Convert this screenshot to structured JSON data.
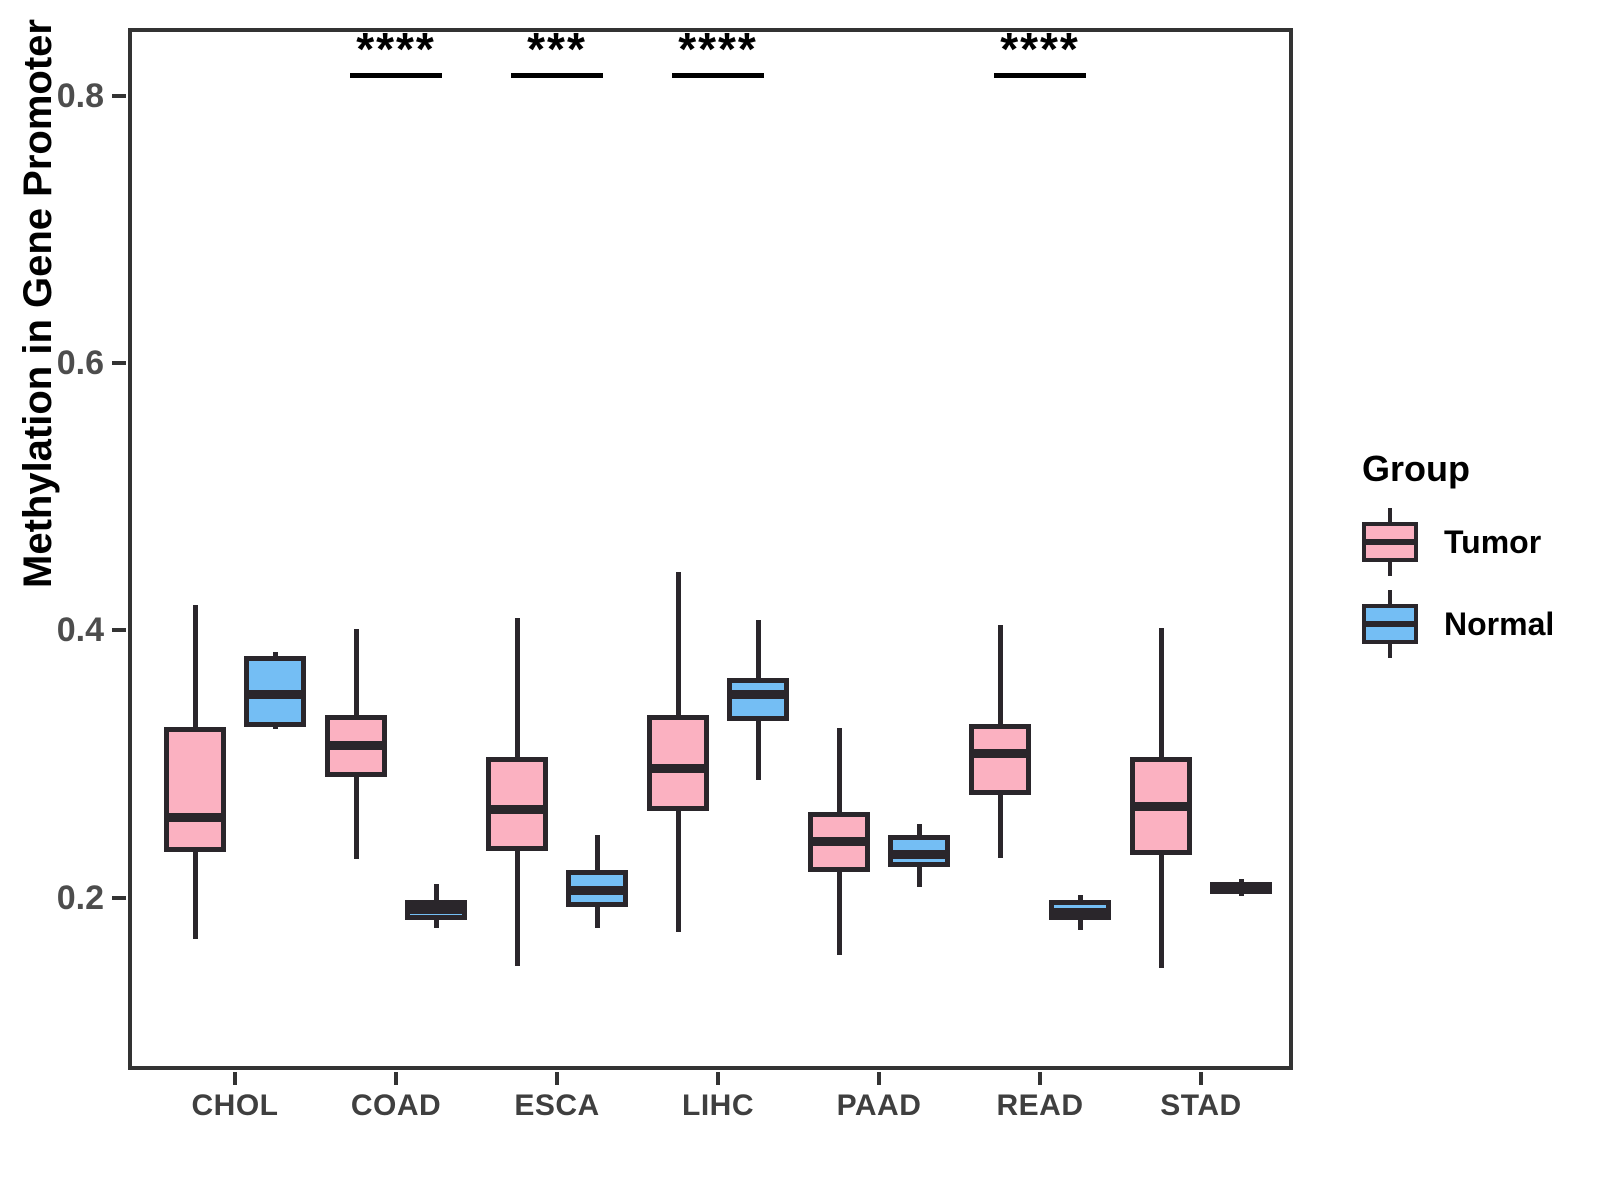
{
  "chart_data": {
    "type": "grouped_boxplot",
    "title": "",
    "xlabel": "",
    "ylabel": "Methylation in Gene Promoter",
    "categories": [
      "CHOL",
      "COAD",
      "ESCA",
      "LIHC",
      "PAAD",
      "READ",
      "STAD"
    ],
    "y_ticks": [
      0.8,
      0.6,
      0.4,
      0.2
    ],
    "ylim": [
      0.07,
      0.85
    ],
    "grid": false,
    "legend": {
      "title": "Group",
      "position": "right",
      "entries": [
        {
          "label": "Tumor",
          "fill": "#FBB1C1"
        },
        {
          "label": "Normal",
          "fill": "#74BEF4"
        }
      ]
    },
    "series": [
      {
        "name": "Tumor",
        "fill": "#FBB1C1",
        "boxes": [
          {
            "category": "CHOL",
            "min": 0.169,
            "q1": 0.234,
            "median": 0.26,
            "q3": 0.328,
            "max": 0.419
          },
          {
            "category": "COAD",
            "min": 0.229,
            "q1": 0.29,
            "median": 0.314,
            "q3": 0.337,
            "max": 0.401
          },
          {
            "category": "ESCA",
            "min": 0.149,
            "q1": 0.235,
            "median": 0.266,
            "q3": 0.305,
            "max": 0.409
          },
          {
            "category": "LIHC",
            "min": 0.174,
            "q1": 0.265,
            "median": 0.297,
            "q3": 0.337,
            "max": 0.444
          },
          {
            "category": "PAAD",
            "min": 0.157,
            "q1": 0.219,
            "median": 0.242,
            "q3": 0.264,
            "max": 0.327
          },
          {
            "category": "READ",
            "min": 0.23,
            "q1": 0.277,
            "median": 0.308,
            "q3": 0.33,
            "max": 0.404
          },
          {
            "category": "STAD",
            "min": 0.147,
            "q1": 0.232,
            "median": 0.268,
            "q3": 0.305,
            "max": 0.402
          }
        ]
      },
      {
        "name": "Normal",
        "fill": "#74BEF4",
        "boxes": [
          {
            "category": "CHOL",
            "min": 0.326,
            "q1": 0.328,
            "median": 0.352,
            "q3": 0.381,
            "max": 0.384
          },
          {
            "category": "COAD",
            "min": 0.177,
            "q1": 0.183,
            "median": 0.191,
            "q3": 0.198,
            "max": 0.21
          },
          {
            "category": "ESCA",
            "min": 0.177,
            "q1": 0.193,
            "median": 0.205,
            "q3": 0.221,
            "max": 0.247
          },
          {
            "category": "LIHC",
            "min": 0.288,
            "q1": 0.332,
            "median": 0.352,
            "q3": 0.364,
            "max": 0.408
          },
          {
            "category": "PAAD",
            "min": 0.208,
            "q1": 0.223,
            "median": 0.232,
            "q3": 0.247,
            "max": 0.255
          },
          {
            "category": "READ",
            "min": 0.176,
            "q1": 0.183,
            "median": 0.189,
            "q3": 0.198,
            "max": 0.202
          },
          {
            "category": "STAD",
            "min": 0.201,
            "q1": 0.203,
            "median": 0.208,
            "q3": 0.212,
            "max": 0.214
          }
        ]
      }
    ],
    "significance": [
      {
        "category": "COAD",
        "label": "****"
      },
      {
        "category": "ESCA",
        "label": "***"
      },
      {
        "category": "LIHC",
        "label": "****"
      },
      {
        "category": "READ",
        "label": "****"
      }
    ],
    "style": {
      "tumor_fill": "#FBB1C1",
      "normal_fill": "#74BEF4",
      "box_border": "#2A262B",
      "axis_color": "#333333",
      "y_tick_label_color": "#4D4D4D",
      "x_tick_label_color": "#3F3F3F",
      "background": "#FFFFFF"
    }
  }
}
